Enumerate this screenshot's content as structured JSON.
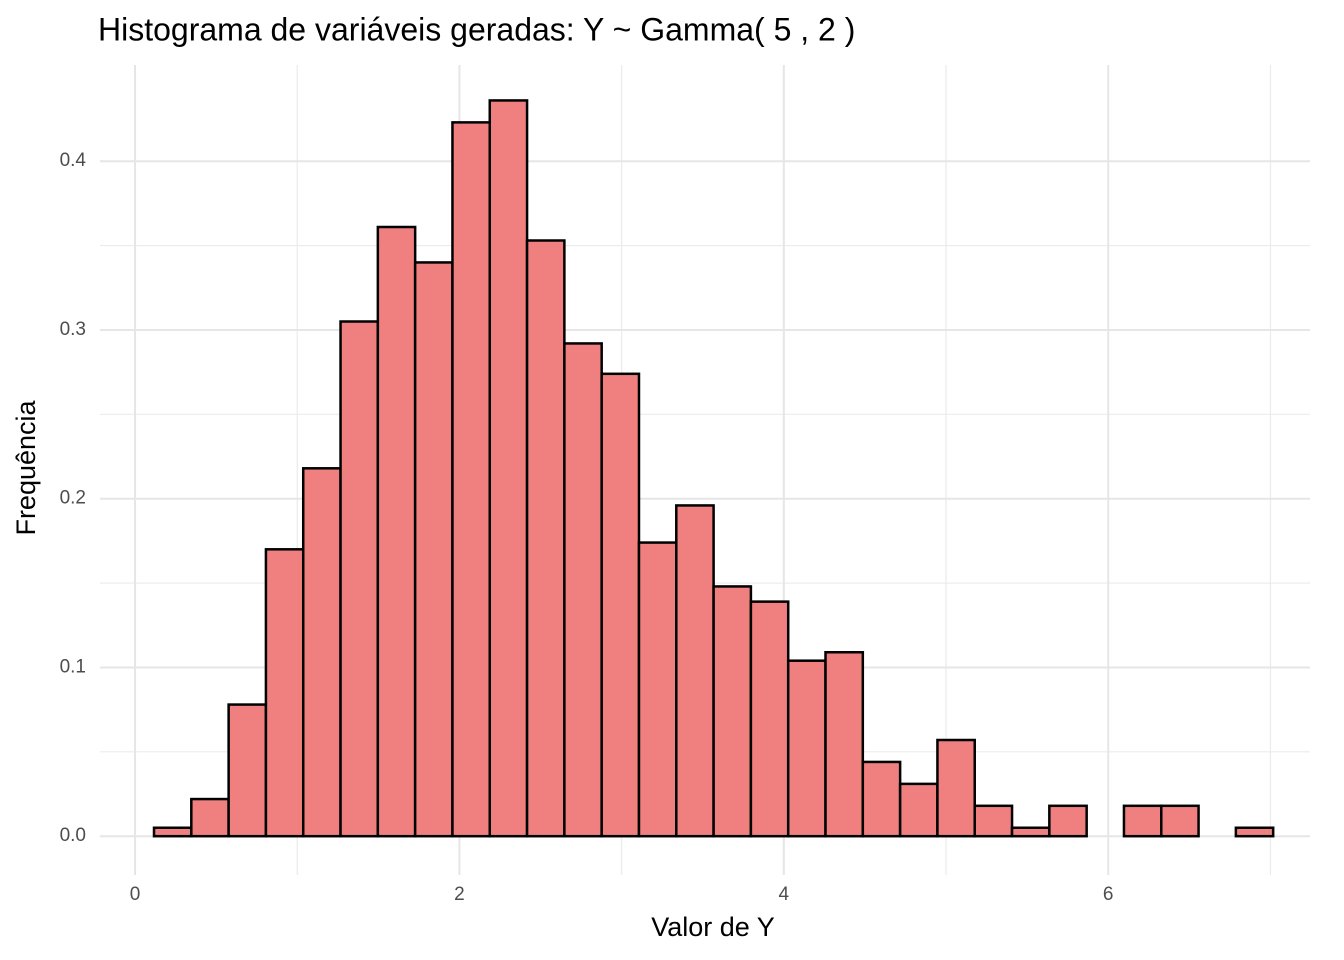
{
  "chart_data": {
    "type": "histogram",
    "title": "Histograma de variáveis geradas: Y ~ Gamma( 5 ,  2 )",
    "x_label": "Valor de Y",
    "y_label": "Frequência",
    "bins": [
      0.117,
      0.347,
      0.577,
      0.807,
      1.037,
      1.267,
      1.497,
      1.727,
      1.957,
      2.187,
      2.417,
      2.647,
      2.877,
      3.107,
      3.337,
      3.567,
      3.797,
      4.027,
      4.257,
      4.487,
      4.717,
      4.947,
      5.177,
      5.407,
      5.637,
      5.867,
      6.097,
      6.327,
      6.557,
      6.787,
      7.017
    ],
    "values": [
      0.005,
      0.022,
      0.078,
      0.17,
      0.218,
      0.305,
      0.361,
      0.34,
      0.423,
      0.436,
      0.353,
      0.292,
      0.274,
      0.174,
      0.196,
      0.148,
      0.139,
      0.104,
      0.109,
      0.044,
      0.031,
      0.057,
      0.018,
      0.005,
      0.018,
      0,
      0.018,
      0.018,
      0,
      0.005
    ],
    "color": "#f08080",
    "edge_color": "#000000",
    "xlim": [
      -0.216,
      7.244
    ],
    "ylim": [
      -0.023,
      0.457
    ],
    "xticks": [
      0,
      2,
      4,
      6
    ],
    "yticks": [
      {
        "value": 0,
        "label": "0.0"
      },
      0.1,
      0.2,
      0.3,
      0.4
    ],
    "x_minor_ticks": [
      1,
      3,
      5,
      7
    ],
    "y_minor_ticks": [
      0.05,
      0.15,
      0.25,
      0.35
    ],
    "grid": true
  }
}
